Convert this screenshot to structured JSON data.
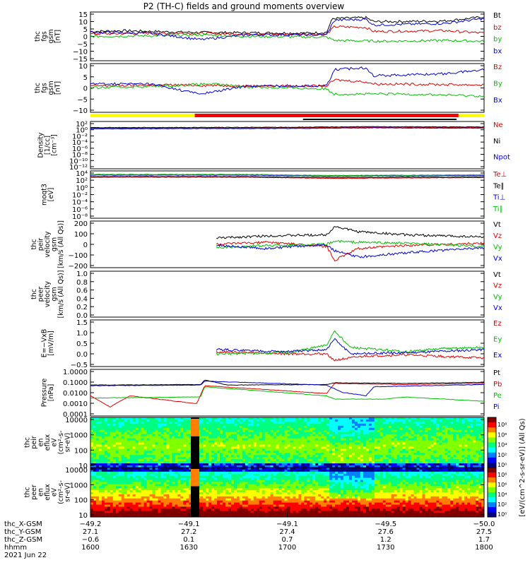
{
  "title": "P2 (TH-C) fields and ground moments overview",
  "colors": {
    "black": "#000000",
    "red": "#e00000",
    "green": "#00c000",
    "blue": "#0000d0",
    "yellow": "#ffff00",
    "barred": "#ff0000"
  },
  "chart_data": [
    {
      "id": "fgs",
      "type": "line",
      "ylabel": [
        "thc",
        "fgs",
        "gsm",
        "[nT]"
      ],
      "yticks": [
        "15",
        "10",
        "5",
        "0",
        "−5",
        "−10",
        "−15"
      ],
      "ylim": [
        -15,
        15
      ],
      "series": [
        {
          "name": "Bt",
          "color": "black",
          "key": [
            [
              0,
              3
            ],
            [
              0.08,
              3.5
            ],
            [
              0.25,
              2.5
            ],
            [
              0.4,
              2.2
            ],
            [
              0.55,
              2
            ],
            [
              0.6,
              2.5
            ],
            [
              0.615,
              11
            ],
            [
              0.7,
              11.5
            ],
            [
              0.72,
              9
            ],
            [
              0.9,
              9.5
            ],
            [
              1,
              12
            ]
          ]
        },
        {
          "name": "bz",
          "color": "red",
          "key": [
            [
              0,
              1.5
            ],
            [
              0.2,
              2
            ],
            [
              0.4,
              1.5
            ],
            [
              0.6,
              1.2
            ],
            [
              0.62,
              6
            ],
            [
              0.7,
              5.5
            ],
            [
              0.72,
              3
            ],
            [
              0.9,
              3.5
            ],
            [
              1,
              2
            ]
          ]
        },
        {
          "name": "by",
          "color": "green",
          "key": [
            [
              0,
              0
            ],
            [
              0.2,
              0.5
            ],
            [
              0.28,
              1
            ],
            [
              0.4,
              0
            ],
            [
              0.6,
              -0.5
            ],
            [
              0.62,
              -2.5
            ],
            [
              0.75,
              -3
            ],
            [
              0.9,
              -2.5
            ],
            [
              1,
              -3
            ]
          ]
        },
        {
          "name": "bx",
          "color": "blue",
          "key": [
            [
              0,
              2.5
            ],
            [
              0.15,
              2
            ],
            [
              0.28,
              -2
            ],
            [
              0.4,
              1
            ],
            [
              0.6,
              1
            ],
            [
              0.62,
              10
            ],
            [
              0.7,
              10.5
            ],
            [
              0.72,
              7
            ],
            [
              0.9,
              8
            ],
            [
              1,
              11
            ]
          ]
        }
      ]
    },
    {
      "id": "fgs2",
      "type": "line",
      "ylabel": [
        "thc",
        "fgs",
        "gsm",
        "[nT]"
      ],
      "yticks": [
        "10",
        "5",
        "0",
        "−5",
        "−10"
      ],
      "ylim": [
        -12,
        12
      ],
      "series": [
        {
          "name": "Bz",
          "color": "red",
          "key": [
            [
              0,
              1
            ],
            [
              0.2,
              1.5
            ],
            [
              0.4,
              1
            ],
            [
              0.6,
              1
            ],
            [
              0.62,
              4
            ],
            [
              0.7,
              3
            ],
            [
              0.72,
              2
            ],
            [
              1,
              1.5
            ]
          ]
        },
        {
          "name": "By",
          "color": "green",
          "key": [
            [
              0,
              0
            ],
            [
              0.2,
              1
            ],
            [
              0.3,
              2
            ],
            [
              0.4,
              0.5
            ],
            [
              0.6,
              -0.5
            ],
            [
              0.62,
              -3
            ],
            [
              0.8,
              -3
            ],
            [
              1,
              -4
            ]
          ]
        },
        {
          "name": "Bx",
          "color": "blue",
          "key": [
            [
              0,
              2
            ],
            [
              0.15,
              2
            ],
            [
              0.28,
              -3
            ],
            [
              0.4,
              1
            ],
            [
              0.6,
              1
            ],
            [
              0.62,
              9
            ],
            [
              0.7,
              10
            ],
            [
              0.72,
              6
            ],
            [
              0.9,
              7
            ],
            [
              1,
              9
            ]
          ]
        }
      ]
    },
    {
      "id": "density",
      "type": "line",
      "log": true,
      "ylabel": [
        "Density",
        "[1/cc]",
        "[cm⁻³]"
      ],
      "yticks": [
        "10²",
        "10⁰",
        "10⁻²",
        "10⁻⁴",
        "10⁻⁶",
        "10⁻⁸",
        "10⁻¹⁰",
        "10⁻¹²"
      ],
      "ylim": [
        -13,
        2.5
      ],
      "series": [
        {
          "name": "Ne",
          "color": "red",
          "key": [
            [
              0,
              0.3
            ],
            [
              0.5,
              0.4
            ],
            [
              0.7,
              0.6
            ],
            [
              1,
              0.5
            ]
          ]
        },
        {
          "name": "Ni",
          "color": "black",
          "key": [
            [
              0,
              0.5
            ],
            [
              0.5,
              0.6
            ],
            [
              0.7,
              0.8
            ],
            [
              1,
              0.7
            ]
          ]
        },
        {
          "name": "Npot",
          "color": "blue",
          "key": [
            [
              0,
              0.1
            ],
            [
              0.5,
              0.2
            ],
            [
              0.7,
              0.4
            ],
            [
              1,
              0.3
            ]
          ]
        }
      ]
    },
    {
      "id": "temp",
      "type": "line",
      "log": true,
      "ylabel": [
        "moqt3",
        "[eV]"
      ],
      "yticks": [
        "10⁴",
        "10²",
        "10⁰",
        "10⁻²",
        "10⁻⁴",
        "10⁻⁶",
        "10⁻⁸"
      ],
      "ylim": [
        -9,
        4.5
      ],
      "series": [
        {
          "name": "Te⊥",
          "color": "red",
          "key": [
            [
              0,
              2.7
            ],
            [
              0.4,
              2.7
            ],
            [
              0.6,
              2.4
            ],
            [
              1,
              2.6
            ]
          ]
        },
        {
          "name": "Te∥",
          "color": "black",
          "key": [
            [
              0,
              2.9
            ],
            [
              0.4,
              2.9
            ],
            [
              0.6,
              2.6
            ],
            [
              1,
              2.8
            ]
          ]
        },
        {
          "name": "Ti⊥",
          "color": "blue",
          "key": [
            [
              0,
              3.3
            ],
            [
              0.4,
              3.3
            ],
            [
              0.6,
              3
            ],
            [
              1,
              3.2
            ]
          ]
        },
        {
          "name": "Ti∥",
          "color": "green",
          "key": [
            [
              0,
              3.5
            ],
            [
              0.4,
              3.5
            ],
            [
              0.6,
              3.2
            ],
            [
              1,
              3.4
            ]
          ]
        }
      ]
    },
    {
      "id": "peir_vel",
      "type": "line",
      "ylabel": [
        "thc",
        "peir",
        "velocity",
        "gsm",
        "[km/s (All Qs)]"
      ],
      "yticks": [
        "200",
        "100",
        "0",
        "−100",
        "−200"
      ],
      "ylim": [
        -220,
        220
      ],
      "start": 0.32,
      "series": [
        {
          "name": "Vt",
          "color": "black",
          "key": [
            [
              0.32,
              60
            ],
            [
              0.45,
              80
            ],
            [
              0.6,
              90
            ],
            [
              0.62,
              170
            ],
            [
              0.68,
              120
            ],
            [
              0.8,
              90
            ],
            [
              1,
              70
            ]
          ]
        },
        {
          "name": "Vz",
          "color": "red",
          "key": [
            [
              0.32,
              0
            ],
            [
              0.45,
              20
            ],
            [
              0.6,
              -20
            ],
            [
              0.62,
              -150
            ],
            [
              0.68,
              -40
            ],
            [
              0.8,
              -10
            ],
            [
              1,
              10
            ]
          ]
        },
        {
          "name": "Vy",
          "color": "green",
          "key": [
            [
              0.32,
              -30
            ],
            [
              0.45,
              -10
            ],
            [
              0.6,
              0
            ],
            [
              0.62,
              30
            ],
            [
              0.68,
              20
            ],
            [
              0.8,
              10
            ],
            [
              1,
              -20
            ]
          ]
        },
        {
          "name": "Vx",
          "color": "blue",
          "key": [
            [
              0.32,
              -10
            ],
            [
              0.45,
              -40
            ],
            [
              0.6,
              0
            ],
            [
              0.62,
              -60
            ],
            [
              0.68,
              -120
            ],
            [
              0.8,
              -80
            ],
            [
              1,
              -30
            ]
          ]
        }
      ]
    },
    {
      "id": "peer_vel",
      "type": "line",
      "ylabel": [
        "thc",
        "peer",
        "velocity",
        "gsm",
        "[km/s (All Qs)]"
      ],
      "yticks": [
        "1.0",
        "0.8",
        "0.6",
        "0.4",
        "0.2",
        "0.0"
      ],
      "ylim": [
        -0.1,
        1.05
      ],
      "series": [
        {
          "name": "Vt",
          "color": "black",
          "key": []
        },
        {
          "name": "Vz",
          "color": "red",
          "key": []
        },
        {
          "name": "Vy",
          "color": "green",
          "key": []
        },
        {
          "name": "Vx",
          "color": "blue",
          "key": []
        }
      ]
    },
    {
      "id": "efield",
      "type": "line",
      "ylabel": [
        "E=−VxB",
        "[mV/m]"
      ],
      "yticks": [
        "1.5",
        "1.0",
        "0.5",
        "0.0",
        "−0.5"
      ],
      "ylim": [
        -0.6,
        1.6
      ],
      "start": 0.32,
      "series": [
        {
          "name": "Ez",
          "color": "red",
          "key": [
            [
              0.32,
              0.1
            ],
            [
              0.5,
              0
            ],
            [
              0.6,
              0
            ],
            [
              0.62,
              -0.3
            ],
            [
              0.7,
              -0.1
            ],
            [
              0.8,
              -0.05
            ],
            [
              1,
              -0.2
            ]
          ]
        },
        {
          "name": "Ey",
          "color": "green",
          "key": [
            [
              0.32,
              0
            ],
            [
              0.5,
              0.05
            ],
            [
              0.6,
              0.4
            ],
            [
              0.62,
              1.1
            ],
            [
              0.66,
              0.3
            ],
            [
              0.8,
              0.1
            ],
            [
              0.9,
              0.25
            ],
            [
              1,
              0.3
            ]
          ]
        },
        {
          "name": "Ex",
          "color": "blue",
          "key": [
            [
              0.32,
              0.2
            ],
            [
              0.5,
              0.1
            ],
            [
              0.6,
              0.2
            ],
            [
              0.62,
              0.7
            ],
            [
              0.66,
              0
            ],
            [
              0.8,
              0.05
            ],
            [
              1,
              0.2
            ]
          ]
        }
      ]
    },
    {
      "id": "pressure",
      "type": "line",
      "log": true,
      "ylabel": [
        "Pressure",
        "[nPa]"
      ],
      "yticks": [
        "1.0000",
        "0.1000",
        "0.0100",
        "0.0010",
        "0.0001"
      ],
      "ylim": [
        -4.1,
        0.05
      ],
      "series": [
        {
          "name": "Pt",
          "color": "black",
          "key": [
            [
              0,
              -1.35
            ],
            [
              0.28,
              -1.3
            ],
            [
              0.29,
              -0.9
            ],
            [
              0.35,
              -1.35
            ],
            [
              0.6,
              -1.3
            ],
            [
              0.62,
              -1.15
            ],
            [
              0.8,
              -1.2
            ],
            [
              1,
              -1.1
            ]
          ]
        },
        {
          "name": "Pb",
          "color": "red",
          "key": [
            [
              0,
              -2.3
            ],
            [
              0.05,
              -3.3
            ],
            [
              0.1,
              -2.3
            ],
            [
              0.27,
              -3
            ],
            [
              0.29,
              -1.4
            ],
            [
              0.6,
              -2.1
            ],
            [
              0.62,
              -1.2
            ],
            [
              0.8,
              -1.3
            ],
            [
              1,
              -1.2
            ]
          ]
        },
        {
          "name": "Pe",
          "color": "green",
          "key": [
            [
              0,
              -2.5
            ],
            [
              0.28,
              -2.4
            ],
            [
              0.29,
              -1.5
            ],
            [
              0.6,
              -2.3
            ],
            [
              0.62,
              -2.6
            ],
            [
              0.75,
              -2.6
            ],
            [
              0.8,
              -2.4
            ],
            [
              1,
              -2.8
            ]
          ]
        },
        {
          "name": "Pi",
          "color": "blue",
          "key": [
            [
              0,
              -1.4
            ],
            [
              0.28,
              -1.35
            ],
            [
              0.29,
              -1
            ],
            [
              0.6,
              -1.35
            ],
            [
              0.64,
              -2
            ],
            [
              0.7,
              -2.3
            ],
            [
              0.72,
              -1.5
            ],
            [
              1,
              -1.3
            ]
          ]
        }
      ]
    },
    {
      "id": "peir_spec",
      "type": "heatmap",
      "ylabel": [
        "thc",
        "peir",
        "en",
        "eflux",
        "eV",
        "(cm²-s-",
        "sr-eV)"
      ],
      "yticks": [
        "10000",
        "1000",
        "100",
        "10"
      ]
    },
    {
      "id": "peer_spec",
      "type": "heatmap",
      "ylabel": [
        "thc",
        "peer",
        "en",
        "eflux",
        "eV",
        "(cm²-s-",
        "sr-eV)"
      ],
      "yticks": [
        "10000",
        "1000",
        "100",
        "10"
      ]
    }
  ],
  "colorbar": {
    "label": "[eV/(cm^2-s-sr-eV)] (All Qs)",
    "ticks_top": [
      "10⁸",
      "10⁶",
      "10⁴",
      "10²",
      "10⁰"
    ],
    "ticks_bottom": [
      "10⁸",
      "10⁶",
      "10⁴",
      "10²",
      "10⁰"
    ]
  },
  "xaxis": {
    "rows": [
      {
        "label": "thc_X-GSM",
        "values": [
          "−49.2",
          "−49.1",
          "−49.1",
          "−49.5",
          "−50.0"
        ]
      },
      {
        "label": "thc_Y-GSM",
        "values": [
          "27.1",
          "27.2",
          "27.4",
          "27.6",
          "27.5"
        ]
      },
      {
        "label": "thc_Z-GSM",
        "values": [
          "−0.6",
          "0.1",
          "0.7",
          "1.2",
          "1.7"
        ]
      },
      {
        "label": "hhmm",
        "values": [
          "1600",
          "1630",
          "1700",
          "1730",
          "1800"
        ]
      }
    ],
    "date": "2021 Jun 22"
  }
}
